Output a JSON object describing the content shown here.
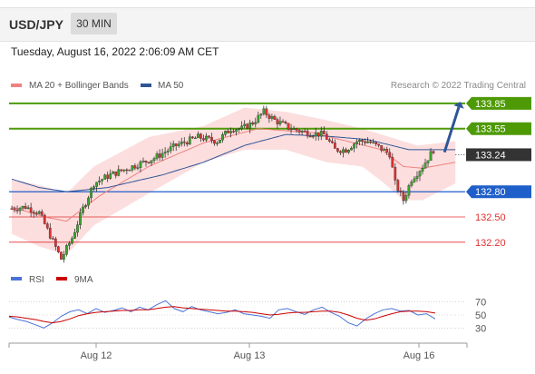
{
  "header": {
    "symbol": "USD/JPY",
    "timeframe": "30 MIN",
    "datetime": "Tuesday, August 16, 2022 2:06:09 AM CET"
  },
  "legend": {
    "items": [
      {
        "label": "MA 20 + Bollinger Bands",
        "color": "#f08080"
      },
      {
        "label": "MA 50",
        "color": "#2f5597"
      }
    ],
    "copyright": "Research © 2022 Trading Central"
  },
  "chart_data": [
    {
      "type": "candlestick",
      "title": "",
      "x_tick_labels": [
        "Aug 12",
        "Aug 13",
        "Aug 16"
      ],
      "price_range": [
        131.95,
        134.0
      ],
      "current_price": 133.24,
      "levels": [
        {
          "value": 133.85,
          "label": "133.85",
          "kind": "resistance",
          "color": "#4e9a06"
        },
        {
          "value": 133.55,
          "label": "133.55",
          "kind": "resistance",
          "color": "#4e9a06"
        },
        {
          "value": 133.24,
          "label": "133.24",
          "kind": "current",
          "color": "#333333"
        },
        {
          "value": 132.8,
          "label": "132.80",
          "kind": "pivot",
          "color": "#1f5fc9"
        },
        {
          "value": 132.5,
          "label": "132.50",
          "kind": "support",
          "color": "#e03030"
        },
        {
          "value": 132.2,
          "label": "132.20",
          "kind": "support",
          "color": "#e03030"
        }
      ],
      "projection": {
        "from": 133.27,
        "to": 133.85,
        "color": "#2f5597"
      },
      "candle_count": 155,
      "candle_close_path": [
        [
          0,
          132.6
        ],
        [
          5,
          132.62
        ],
        [
          10,
          132.55
        ],
        [
          14,
          132.28
        ],
        [
          18,
          132.0
        ],
        [
          22,
          132.25
        ],
        [
          26,
          132.6
        ],
        [
          30,
          132.9
        ],
        [
          36,
          133.0
        ],
        [
          44,
          133.1
        ],
        [
          52,
          133.2
        ],
        [
          60,
          133.35
        ],
        [
          68,
          133.45
        ],
        [
          75,
          133.4
        ],
        [
          80,
          133.55
        ],
        [
          84,
          133.55
        ],
        [
          88,
          133.62
        ],
        [
          92,
          133.75
        ],
        [
          96,
          133.65
        ],
        [
          102,
          133.55
        ],
        [
          108,
          133.5
        ],
        [
          114,
          133.48
        ],
        [
          118,
          133.3
        ],
        [
          122,
          133.3
        ],
        [
          126,
          133.4
        ],
        [
          130,
          133.4
        ],
        [
          134,
          133.33
        ],
        [
          138,
          133.25
        ],
        [
          140,
          132.9
        ],
        [
          143,
          132.7
        ],
        [
          146,
          132.95
        ],
        [
          150,
          133.1
        ],
        [
          154,
          133.3
        ],
        [
          158,
          133.28
        ],
        [
          162,
          133.27
        ]
      ],
      "ma20_path": [
        [
          0,
          132.62
        ],
        [
          12,
          132.5
        ],
        [
          20,
          132.45
        ],
        [
          32,
          132.75
        ],
        [
          50,
          133.1
        ],
        [
          70,
          133.38
        ],
        [
          90,
          133.55
        ],
        [
          110,
          133.5
        ],
        [
          125,
          133.38
        ],
        [
          135,
          133.3
        ],
        [
          143,
          133.1
        ],
        [
          150,
          133.08
        ],
        [
          162,
          133.15
        ]
      ],
      "ma50_path": [
        [
          0,
          132.95
        ],
        [
          10,
          132.85
        ],
        [
          20,
          132.8
        ],
        [
          35,
          132.85
        ],
        [
          55,
          133.0
        ],
        [
          70,
          133.15
        ],
        [
          85,
          133.35
        ],
        [
          100,
          133.48
        ],
        [
          115,
          133.46
        ],
        [
          130,
          133.42
        ],
        [
          145,
          133.3
        ],
        [
          162,
          133.3
        ]
      ],
      "bollinger_upper_path": [
        [
          0,
          132.95
        ],
        [
          10,
          132.88
        ],
        [
          20,
          132.78
        ],
        [
          30,
          133.1
        ],
        [
          50,
          133.45
        ],
        [
          70,
          133.58
        ],
        [
          85,
          133.8
        ],
        [
          100,
          133.75
        ],
        [
          115,
          133.65
        ],
        [
          128,
          133.55
        ],
        [
          138,
          133.45
        ],
        [
          148,
          133.35
        ],
        [
          162,
          133.4
        ]
      ],
      "bollinger_lower_path": [
        [
          0,
          132.3
        ],
        [
          10,
          132.15
        ],
        [
          20,
          132.05
        ],
        [
          30,
          132.4
        ],
        [
          50,
          132.78
        ],
        [
          70,
          133.15
        ],
        [
          85,
          133.3
        ],
        [
          100,
          133.3
        ],
        [
          115,
          133.15
        ],
        [
          128,
          133.1
        ],
        [
          136,
          132.9
        ],
        [
          143,
          132.7
        ],
        [
          150,
          132.7
        ],
        [
          162,
          132.9
        ]
      ]
    },
    {
      "type": "line",
      "title": "",
      "series": [
        {
          "name": "RSI",
          "color": "#4a72d8",
          "values": [
            47,
            43,
            40,
            35,
            30,
            38,
            48,
            55,
            58,
            52,
            60,
            54,
            57,
            61,
            55,
            62,
            58,
            66,
            72,
            60,
            55,
            63,
            58,
            55,
            52,
            54,
            58,
            52,
            50,
            48,
            45,
            58,
            60,
            55,
            51,
            58,
            62,
            54,
            48,
            38,
            33,
            44,
            52,
            58,
            60,
            56,
            57,
            50,
            52,
            44
          ]
        },
        {
          "name": "9MA",
          "color": "#cc0000",
          "values": [
            48,
            47,
            45,
            43,
            40,
            38,
            40,
            44,
            49,
            52,
            54,
            55,
            56,
            57,
            57,
            58,
            58,
            60,
            62,
            63,
            61,
            60,
            59,
            58,
            57,
            56,
            56,
            55,
            54,
            52,
            50,
            51,
            53,
            54,
            54,
            55,
            56,
            56,
            54,
            50,
            45,
            42,
            44,
            48,
            52,
            55,
            56,
            56,
            55,
            53
          ]
        }
      ],
      "y_ticks": [
        70,
        50,
        30
      ],
      "ylim": [
        15,
        85
      ]
    }
  ]
}
